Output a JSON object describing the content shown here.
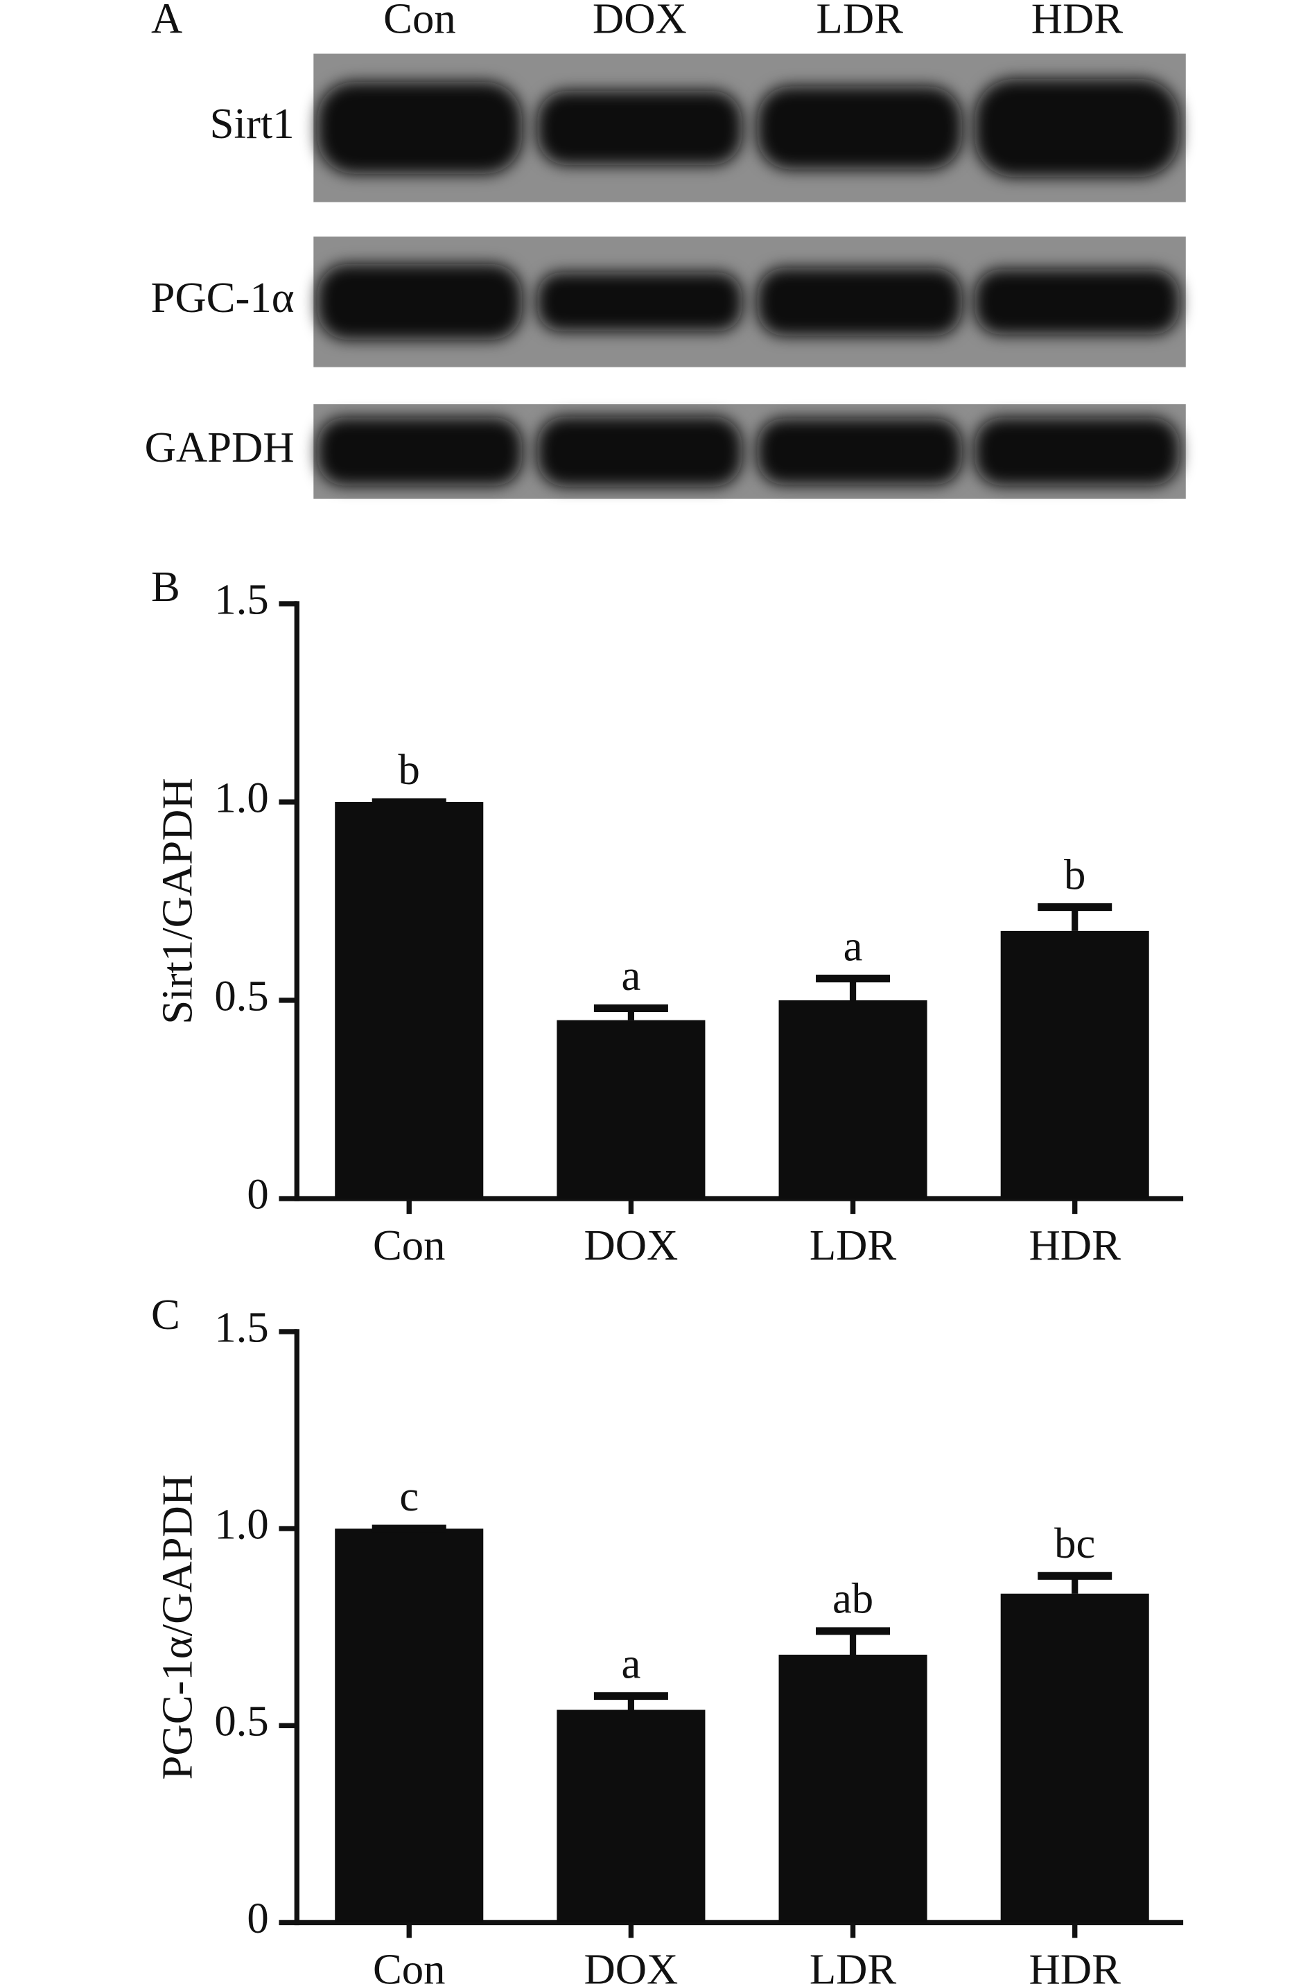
{
  "blot": {
    "label": "A",
    "lanes": [
      "Con",
      "DOX",
      "LDR",
      "HDR"
    ],
    "rows": [
      "Sirt1",
      "PGC-1α",
      "GAPDH"
    ]
  },
  "chart_data": [
    {
      "type": "bar",
      "panel": "B",
      "ylabel": "Sirt1/GAPDH",
      "categories": [
        "Con",
        "DOX",
        "LDR",
        "HDR"
      ],
      "values": [
        1.0,
        0.45,
        0.5,
        0.675
      ],
      "errors": [
        0,
        0.03,
        0.055,
        0.06
      ],
      "annotations": [
        "b",
        "a",
        "a",
        "b"
      ],
      "color": "#0d0d0d",
      "ylim": [
        0,
        1.5
      ],
      "yticks": [
        0,
        0.5,
        {
          "value": 1,
          "label": "1.0"
        },
        1.5
      ]
    },
    {
      "type": "bar",
      "panel": "C",
      "ylabel": "PGC-1α/GAPDH",
      "categories": [
        "Con",
        "DOX",
        "LDR",
        "HDR"
      ],
      "values": [
        1.0,
        0.54,
        0.68,
        0.835
      ],
      "errors": [
        0,
        0.035,
        0.06,
        0.045
      ],
      "annotations": [
        "c",
        "a",
        "ab",
        "bc"
      ],
      "color": "#0d0d0d",
      "ylim": [
        0,
        1.5
      ],
      "yticks": [
        0,
        0.5,
        {
          "value": 1,
          "label": "1.0"
        },
        1.5
      ]
    }
  ]
}
